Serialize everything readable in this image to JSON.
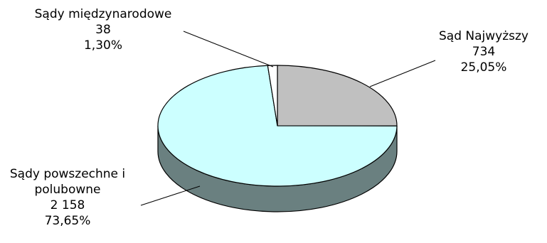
{
  "chart_data": {
    "type": "pie",
    "style": "3d",
    "slices": [
      {
        "name": "Sąd Najwyższy",
        "value": 734,
        "value_label": "734",
        "percent_label": "25,05%",
        "color": "#c0c0c0"
      },
      {
        "name": "Sądy powszechne i polubowne",
        "value": 2158,
        "value_label": "2 158",
        "percent_label": "73,65%",
        "color": "#ccffff"
      },
      {
        "name": "Sądy międzynarodowe",
        "value": 38,
        "value_label": "38",
        "percent_label": "1,30%",
        "color": "#ffffff"
      }
    ],
    "side_color": "#6a8080",
    "legend": "none"
  },
  "labels": {
    "supreme": {
      "line1": "Sąd Najwyższy",
      "value": "734",
      "percent": "25,05%"
    },
    "common": {
      "line1": "Sądy powszechne i",
      "line2": "polubowne",
      "value": "2 158",
      "percent": "73,65%"
    },
    "international": {
      "line1": "Sądy międzynarodowe",
      "value": "38",
      "percent": "1,30%"
    }
  }
}
